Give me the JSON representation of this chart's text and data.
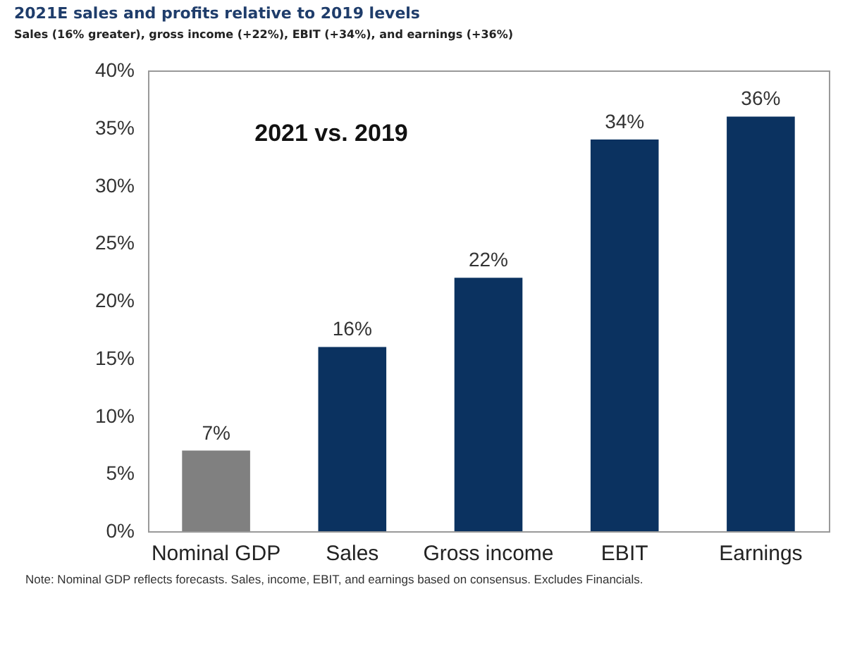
{
  "chart_data": {
    "type": "bar",
    "title": "2021E sales and profits relative to 2019 levels",
    "subtitle": "Sales (16% greater), gross income (+22%), EBIT (+34%), and earnings (+36%)",
    "categories": [
      "Nominal GDP",
      "Sales",
      "Gross income",
      "EBIT",
      "Earnings"
    ],
    "values": [
      7,
      16,
      22,
      34,
      36
    ],
    "value_labels": [
      "7%",
      "16%",
      "22%",
      "34%",
      "36%"
    ],
    "colors": [
      "#808080",
      "#0b3260",
      "#0b3260",
      "#0b3260",
      "#0b3260"
    ],
    "ylim": [
      0,
      40
    ],
    "yticks": [
      {
        "value": 0,
        "label": "0%"
      },
      {
        "value": 5,
        "label": "5%"
      },
      {
        "value": 10,
        "label": "10%"
      },
      {
        "value": 15,
        "label": "15%"
      },
      {
        "value": 20,
        "label": "20%"
      },
      {
        "value": 25,
        "label": "25%"
      },
      {
        "value": 30,
        "label": "30%"
      },
      {
        "value": 35,
        "label": "35%"
      },
      {
        "value": 40,
        "label": "40%"
      }
    ],
    "grid": false,
    "legend": false,
    "annotations": [
      "2021 vs. 2019",
      "Note: Nominal GDP reflects forecasts. Sales, income, EBIT, and earnings based on consensus. Excludes Financials."
    ]
  }
}
